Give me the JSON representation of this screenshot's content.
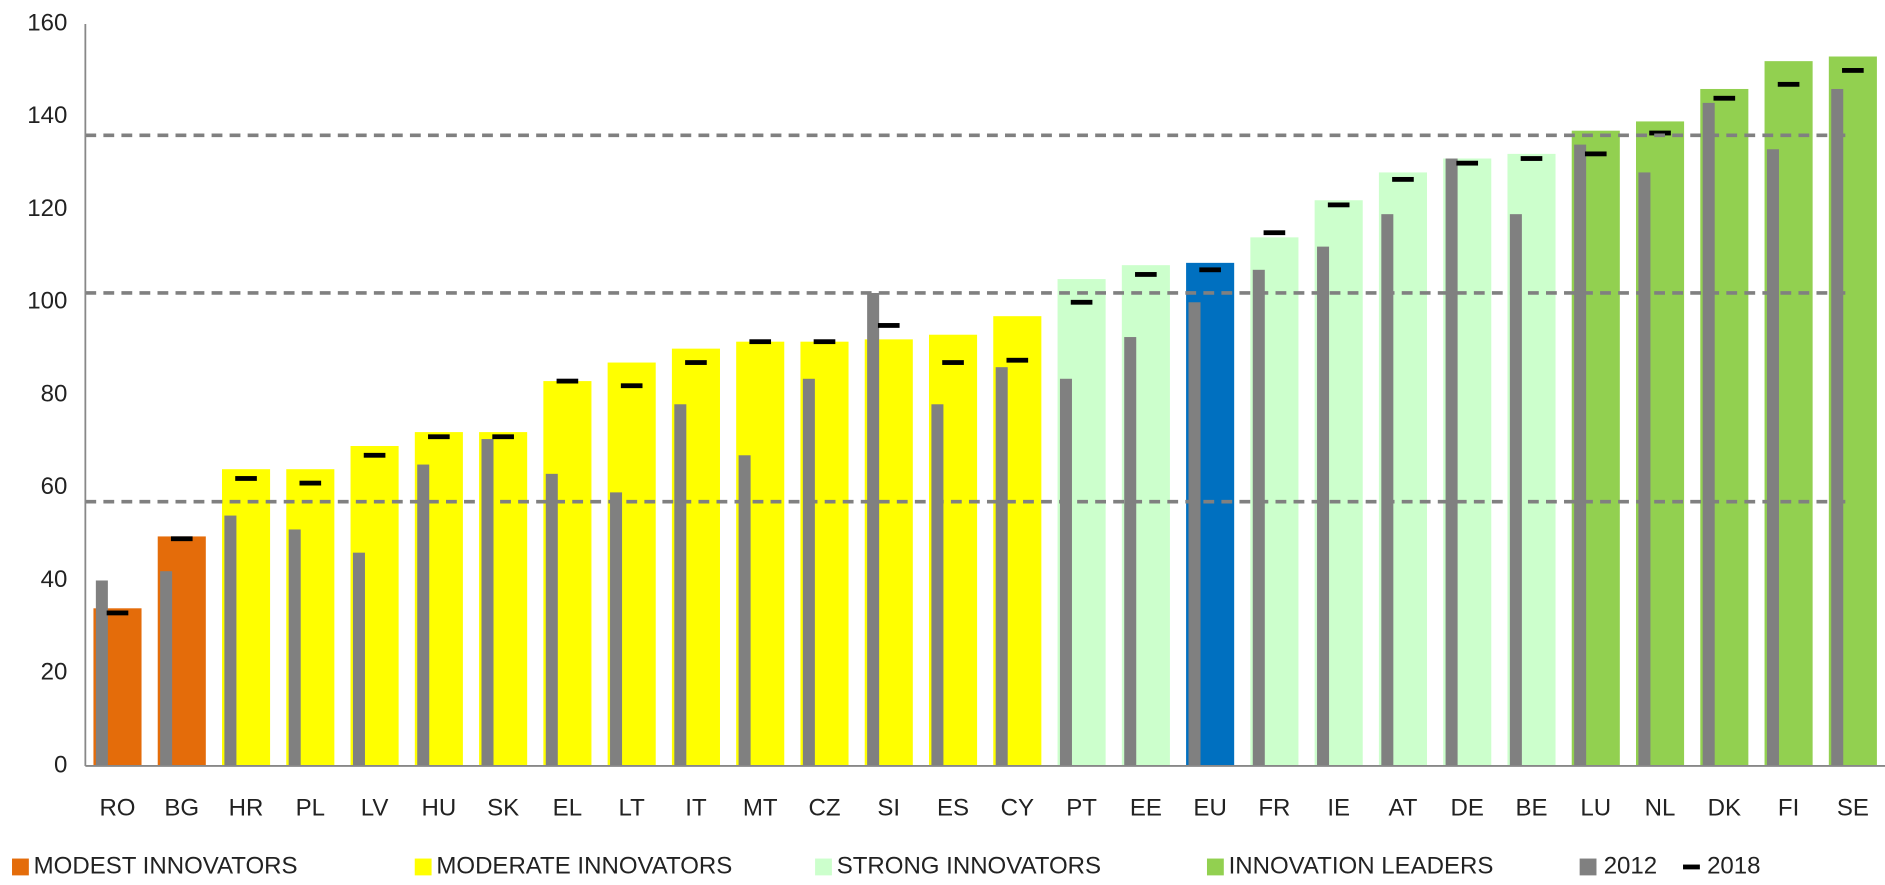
{
  "chart_data": {
    "type": "bar",
    "categories": [
      "RO",
      "BG",
      "HR",
      "PL",
      "LV",
      "HU",
      "SK",
      "EL",
      "LT",
      "IT",
      "MT",
      "CZ",
      "SI",
      "ES",
      "CY",
      "PT",
      "EE",
      "EU",
      "FR",
      "IE",
      "AT",
      "DE",
      "BE",
      "LU",
      "NL",
      "DK",
      "FI",
      "SE"
    ],
    "values": [
      34,
      49.5,
      64,
      64,
      69,
      72,
      72,
      83,
      87,
      90,
      91.5,
      91.5,
      92,
      93,
      97,
      105,
      108,
      108.5,
      114,
      122,
      128,
      131,
      132,
      137,
      139,
      146,
      152,
      153
    ],
    "colors": [
      "#e46c0a",
      "#e46c0a",
      "#ffff00",
      "#ffff00",
      "#ffff00",
      "#ffff00",
      "#ffff00",
      "#ffff00",
      "#ffff00",
      "#ffff00",
      "#ffff00",
      "#ffff00",
      "#ffff00",
      "#ffff00",
      "#ffff00",
      "#ccffcc",
      "#ccffcc",
      "#0070c0",
      "#ccffcc",
      "#ccffcc",
      "#ccffcc",
      "#ccffcc",
      "#ccffcc",
      "#92d050",
      "#92d050",
      "#92d050",
      "#92d050",
      "#92d050"
    ],
    "groups": [
      {
        "name": "MODEST INNOVATORS",
        "color": "#e46c0a"
      },
      {
        "name": "MODERATE INNOVATORS",
        "color": "#ffff00"
      },
      {
        "name": "STRONG INNOVATORS",
        "color": "#ccffcc"
      },
      {
        "name": "INNOVATION LEADERS",
        "color": "#92d050"
      }
    ],
    "series": [
      {
        "name": "2012",
        "color": "#808080",
        "marker": "bar",
        "values": [
          40,
          42,
          54,
          51,
          46,
          65,
          70.5,
          63,
          59,
          78,
          67,
          83.5,
          102,
          78,
          86,
          83.5,
          92.5,
          100,
          107,
          112,
          119,
          131,
          119,
          134,
          128,
          143,
          133,
          146
        ]
      },
      {
        "name": "2018",
        "color": "#000000",
        "marker": "dash",
        "values": [
          33,
          49,
          62,
          61,
          67,
          71,
          71,
          83,
          82,
          87,
          91.5,
          91.5,
          95,
          87,
          87.5,
          100,
          106,
          107,
          115,
          121,
          126.5,
          130,
          131,
          132,
          136.5,
          144,
          147,
          150
        ]
      }
    ],
    "reference_lines": [
      57,
      102,
      136
    ],
    "ylim": [
      0,
      160
    ],
    "yticks": [
      0,
      20,
      40,
      60,
      80,
      100,
      120,
      140,
      160
    ],
    "legend": "bottom"
  }
}
